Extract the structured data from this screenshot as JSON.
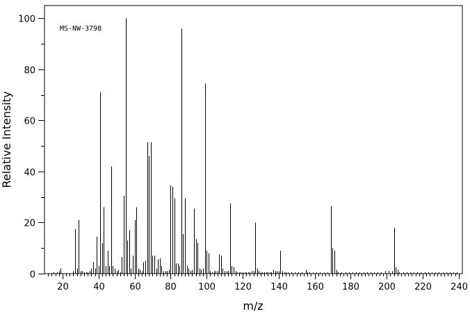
{
  "chart_data": {
    "type": "bar",
    "title": "",
    "annotation": "MS-NW-3798",
    "xlabel": "m/z",
    "ylabel": "Relative Intensity",
    "xlim": [
      10,
      242
    ],
    "ylim": [
      0,
      105
    ],
    "x_major_ticks": [
      20,
      40,
      60,
      80,
      100,
      120,
      140,
      160,
      180,
      200,
      220,
      240
    ],
    "x_minor_step": 2,
    "y_major_ticks": [
      0,
      20,
      40,
      60,
      80,
      100
    ],
    "y_minor_step": 10,
    "grid": false,
    "color": "#000000",
    "peaks": [
      [
        15,
        0.5
      ],
      [
        17,
        0.5
      ],
      [
        18,
        1
      ],
      [
        19,
        2
      ],
      [
        26,
        1
      ],
      [
        27,
        17.5
      ],
      [
        28,
        2
      ],
      [
        29,
        21
      ],
      [
        30,
        1
      ],
      [
        31,
        1
      ],
      [
        32,
        0.5
      ],
      [
        33,
        0.5
      ],
      [
        34,
        0.5
      ],
      [
        35,
        1
      ],
      [
        36,
        2
      ],
      [
        37,
        4.5
      ],
      [
        38,
        2
      ],
      [
        39,
        14.5
      ],
      [
        40,
        3
      ],
      [
        41,
        71
      ],
      [
        42,
        12
      ],
      [
        43,
        26
      ],
      [
        44,
        3
      ],
      [
        45,
        9
      ],
      [
        46,
        3
      ],
      [
        47,
        42
      ],
      [
        48,
        3
      ],
      [
        49,
        2
      ],
      [
        50,
        1
      ],
      [
        51,
        1.5
      ],
      [
        52,
        0.5
      ],
      [
        53,
        6.5
      ],
      [
        54,
        30.5
      ],
      [
        55,
        100
      ],
      [
        56,
        13
      ],
      [
        57,
        17
      ],
      [
        58,
        2
      ],
      [
        59,
        7
      ],
      [
        60,
        21
      ],
      [
        61,
        26
      ],
      [
        62,
        2
      ],
      [
        63,
        1.5
      ],
      [
        64,
        1
      ],
      [
        65,
        4.5
      ],
      [
        66,
        5
      ],
      [
        67,
        51.5
      ],
      [
        68,
        46
      ],
      [
        69,
        51.5
      ],
      [
        70,
        7
      ],
      [
        71,
        7
      ],
      [
        72,
        2
      ],
      [
        73,
        5.5
      ],
      [
        74,
        6
      ],
      [
        75,
        3
      ],
      [
        76,
        1
      ],
      [
        77,
        1
      ],
      [
        78,
        1
      ],
      [
        79,
        1.5
      ],
      [
        80,
        34.5
      ],
      [
        81,
        34
      ],
      [
        82,
        29.5
      ],
      [
        83,
        4
      ],
      [
        84,
        4
      ],
      [
        85,
        3
      ],
      [
        86,
        96
      ],
      [
        87,
        15.5
      ],
      [
        88,
        29.5
      ],
      [
        89,
        3
      ],
      [
        90,
        2
      ],
      [
        91,
        1
      ],
      [
        92,
        1.5
      ],
      [
        93,
        25.5
      ],
      [
        94,
        13.5
      ],
      [
        95,
        12
      ],
      [
        96,
        2
      ],
      [
        97,
        1.5
      ],
      [
        98,
        2
      ],
      [
        99,
        74.5
      ],
      [
        100,
        9
      ],
      [
        101,
        8
      ],
      [
        102,
        1
      ],
      [
        103,
        0.5
      ],
      [
        104,
        1
      ],
      [
        105,
        1
      ],
      [
        106,
        1
      ],
      [
        107,
        7.5
      ],
      [
        108,
        7
      ],
      [
        109,
        2
      ],
      [
        110,
        1
      ],
      [
        111,
        1
      ],
      [
        112,
        1
      ],
      [
        113,
        27.5
      ],
      [
        114,
        3
      ],
      [
        115,
        2.5
      ],
      [
        116,
        1
      ],
      [
        117,
        0.5
      ],
      [
        118,
        0.5
      ],
      [
        119,
        0.5
      ],
      [
        120,
        0.5
      ],
      [
        121,
        0.5
      ],
      [
        122,
        0.5
      ],
      [
        123,
        0.5
      ],
      [
        124,
        0.5
      ],
      [
        125,
        1
      ],
      [
        126,
        1
      ],
      [
        127,
        20
      ],
      [
        128,
        2
      ],
      [
        129,
        1
      ],
      [
        130,
        0.5
      ],
      [
        131,
        0.5
      ],
      [
        132,
        0.5
      ],
      [
        133,
        0.5
      ],
      [
        134,
        0.5
      ],
      [
        135,
        0.5
      ],
      [
        136,
        0.5
      ],
      [
        137,
        1.5
      ],
      [
        138,
        1
      ],
      [
        139,
        1
      ],
      [
        140,
        1
      ],
      [
        141,
        9
      ],
      [
        142,
        1
      ],
      [
        143,
        0.5
      ],
      [
        144,
        0.5
      ],
      [
        145,
        0.5
      ],
      [
        147,
        0.5
      ],
      [
        149,
        0.5
      ],
      [
        151,
        0.5
      ],
      [
        153,
        0.5
      ],
      [
        155,
        1.5
      ],
      [
        156,
        0.5
      ],
      [
        157,
        0.5
      ],
      [
        159,
        0.5
      ],
      [
        161,
        0.5
      ],
      [
        163,
        0.5
      ],
      [
        165,
        0.5
      ],
      [
        167,
        0.5
      ],
      [
        169,
        26.5
      ],
      [
        170,
        10
      ],
      [
        171,
        9
      ],
      [
        172,
        1.5
      ],
      [
        173,
        0.5
      ],
      [
        175,
        0.5
      ],
      [
        177,
        0.5
      ],
      [
        179,
        0.5
      ],
      [
        181,
        0.5
      ],
      [
        183,
        0.5
      ],
      [
        185,
        0.5
      ],
      [
        187,
        0.5
      ],
      [
        189,
        0.5
      ],
      [
        191,
        0.5
      ],
      [
        193,
        0.5
      ],
      [
        195,
        0.5
      ],
      [
        197,
        0.5
      ],
      [
        199,
        1
      ],
      [
        201,
        1
      ],
      [
        203,
        1
      ],
      [
        204,
        18
      ],
      [
        205,
        2.5
      ],
      [
        206,
        1.5
      ],
      [
        207,
        0.5
      ],
      [
        209,
        0.5
      ],
      [
        211,
        0.5
      ],
      [
        213,
        0.5
      ],
      [
        215,
        0.5
      ],
      [
        217,
        0.5
      ],
      [
        219,
        0.5
      ],
      [
        221,
        0.5
      ],
      [
        223,
        0.5
      ],
      [
        225,
        0.5
      ],
      [
        227,
        0.5
      ],
      [
        229,
        0.5
      ],
      [
        231,
        0.5
      ],
      [
        233,
        0.5
      ],
      [
        235,
        0.5
      ],
      [
        237,
        0.5
      ],
      [
        239,
        0.5
      ]
    ]
  }
}
